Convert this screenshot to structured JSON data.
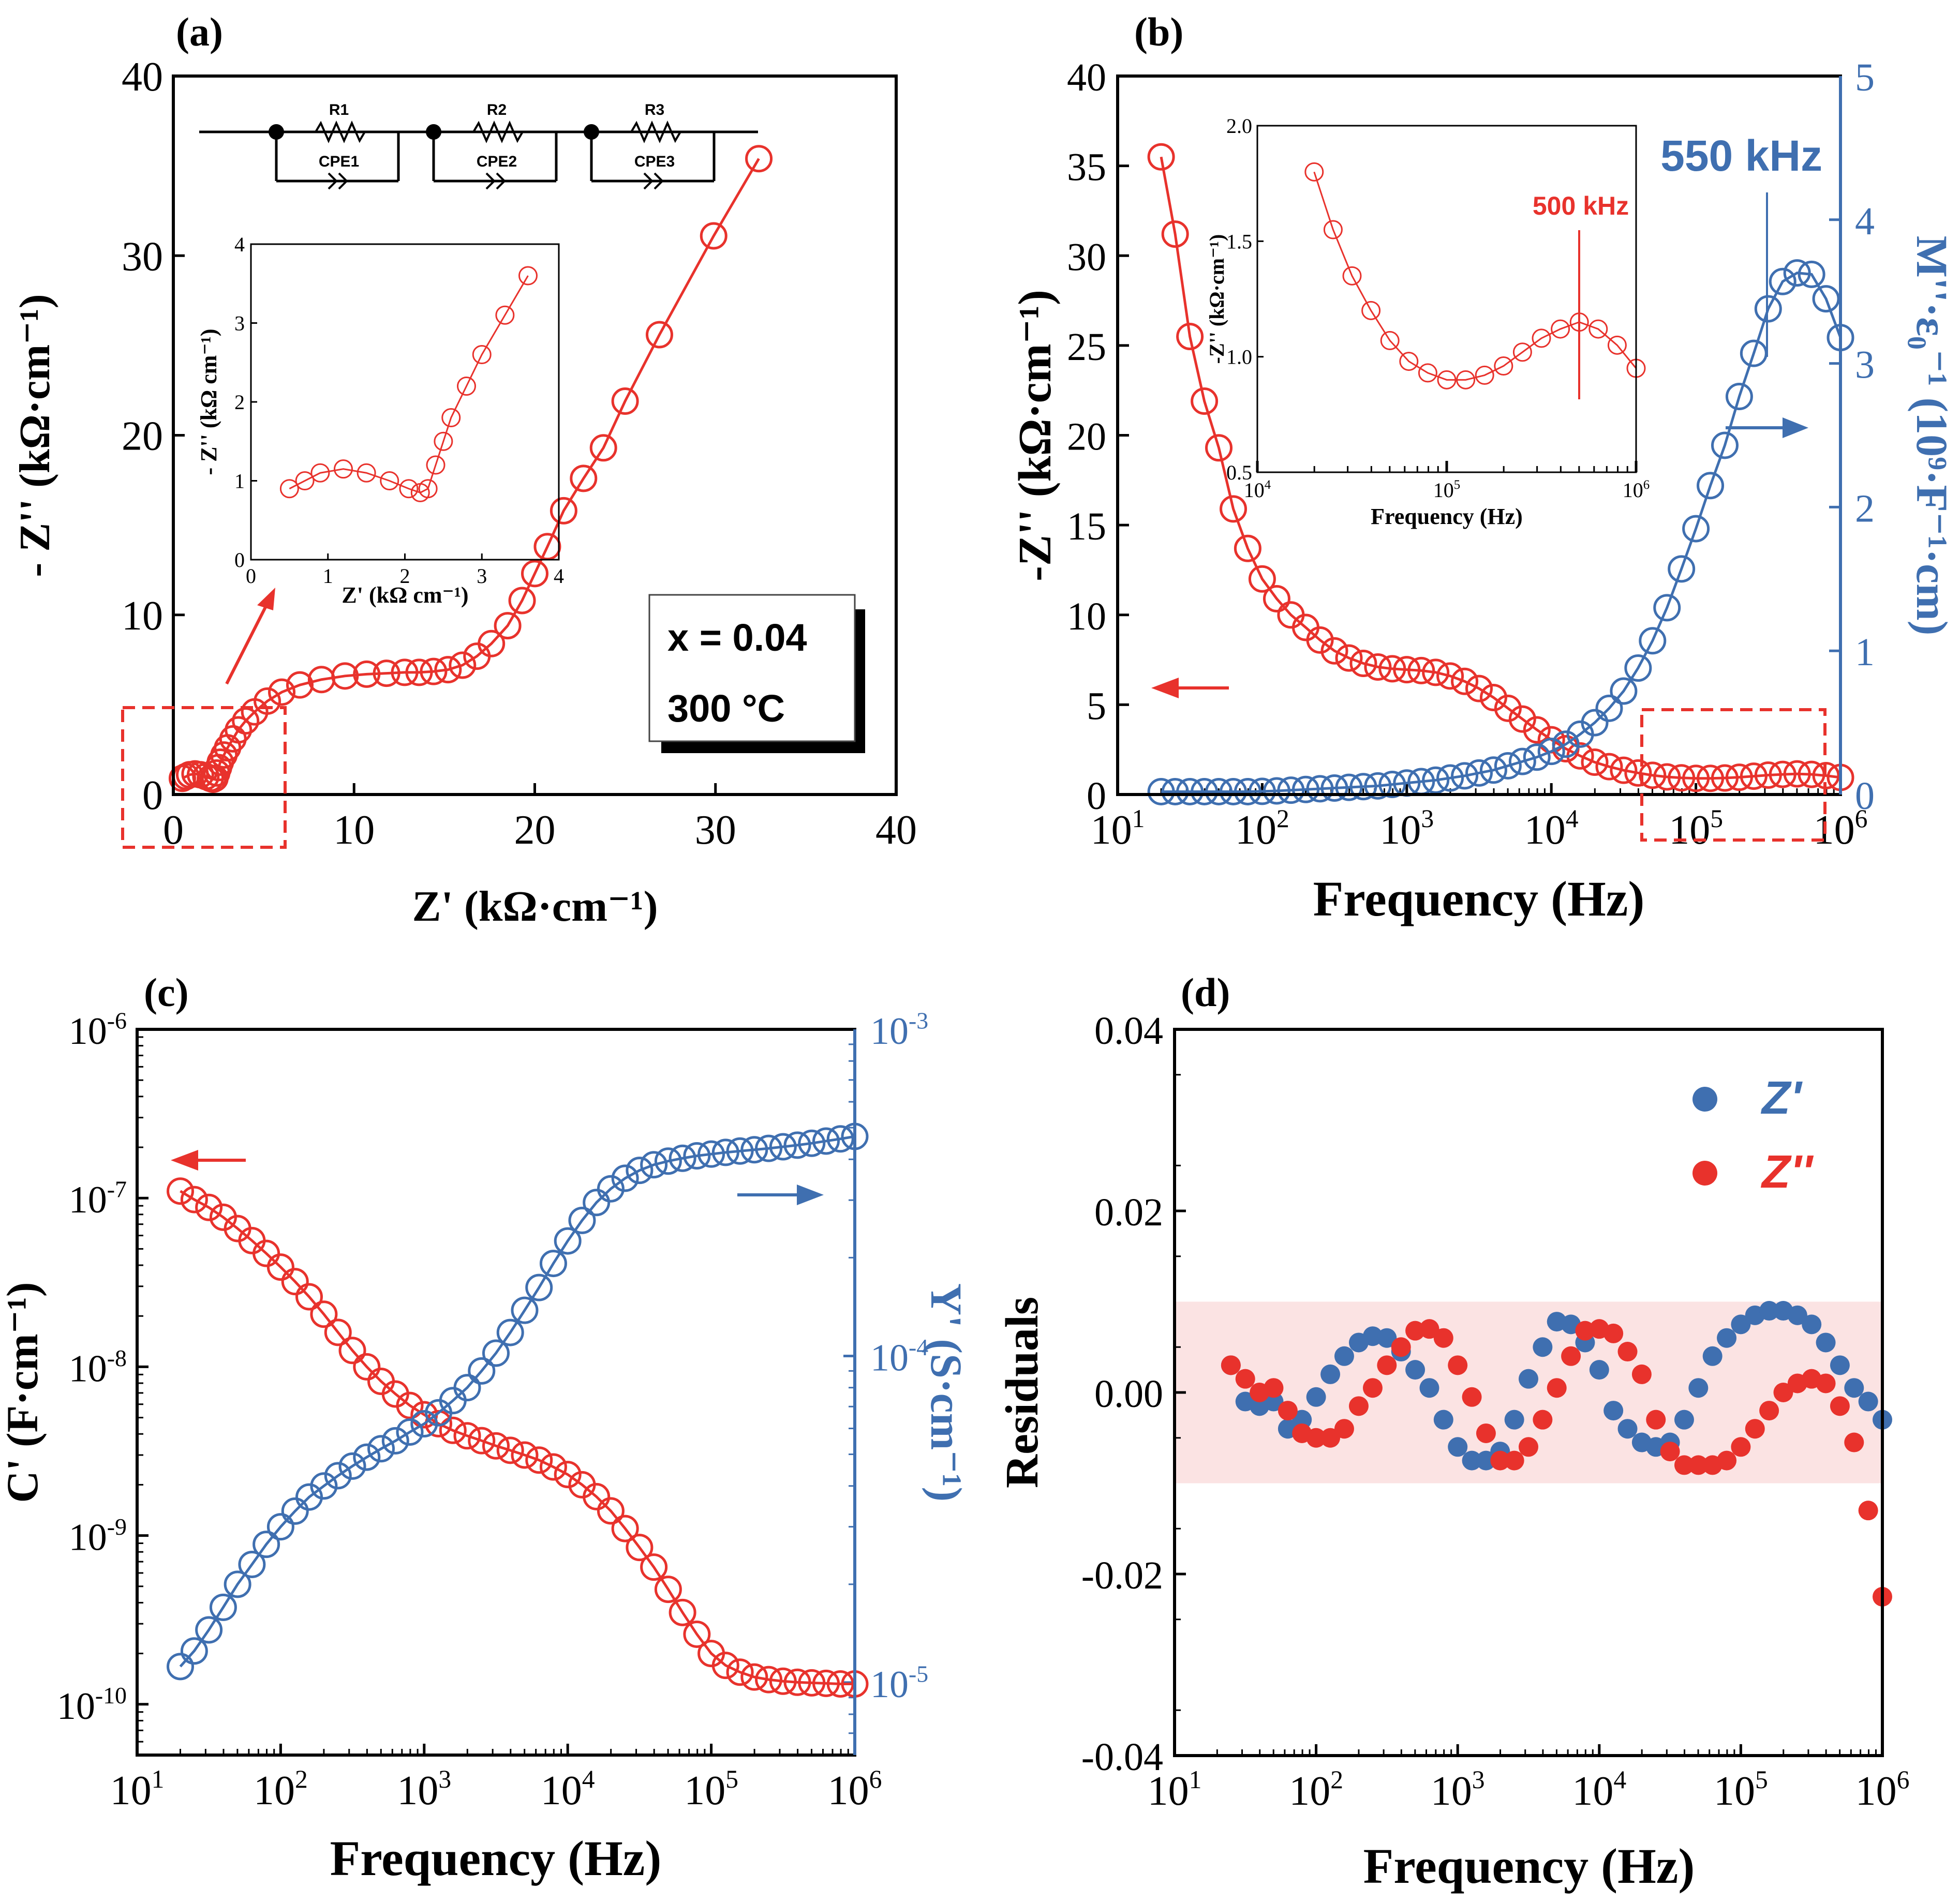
{
  "figure": {
    "colors": {
      "red": "#e8322c",
      "blue": "#3f6fb0",
      "blue_dark": "#2f5fa6",
      "black": "#000000",
      "band": "#fbe3e3"
    }
  },
  "chart_data": [
    {
      "panel": "(a)",
      "type": "scatter",
      "title": "",
      "xlabel": "Z' (kΩ·cm⁻¹)",
      "ylabel": "- Z'' (kΩ·cm⁻¹)",
      "xlim": [
        0,
        40
      ],
      "ylim": [
        0,
        40
      ],
      "xticks": [
        0,
        10,
        20,
        30,
        40
      ],
      "yticks": [
        0,
        10,
        20,
        30,
        40
      ],
      "series": [
        {
          "name": "Z'' vs Z'",
          "color": "red",
          "marker": "open-circle",
          "x": [
            0.5,
            0.7,
            0.9,
            1.2,
            1.5,
            1.8,
            2.05,
            2.2,
            2.3,
            2.4,
            2.5,
            2.6,
            2.8,
            3.0,
            3.3,
            3.6,
            4.0,
            4.5,
            5.2,
            6.0,
            7.0,
            8.2,
            9.5,
            10.7,
            11.8,
            12.8,
            13.6,
            14.4,
            15.2,
            16.0,
            16.8,
            17.6,
            18.5,
            19.3,
            20.0,
            20.7,
            21.6,
            22.7,
            23.8,
            25.0,
            26.9,
            29.9,
            32.4
          ],
          "y": [
            0.9,
            1.0,
            1.1,
            1.15,
            1.1,
            1.0,
            0.9,
            0.85,
            0.9,
            1.2,
            1.5,
            1.8,
            2.2,
            2.6,
            3.1,
            3.6,
            4.1,
            4.6,
            5.2,
            5.7,
            6.1,
            6.4,
            6.6,
            6.7,
            6.75,
            6.8,
            6.8,
            6.85,
            6.95,
            7.2,
            7.7,
            8.4,
            9.4,
            10.8,
            12.3,
            13.8,
            15.8,
            17.6,
            19.3,
            21.9,
            25.6,
            31.1,
            35.4
          ]
        }
      ],
      "inset": {
        "xlabel": "Z' (kΩ cm⁻¹)",
        "ylabel": "- Z'' (kΩ cm⁻¹)",
        "xlim": [
          0,
          4
        ],
        "ylim": [
          0,
          4
        ],
        "xticks": [
          0,
          1,
          2,
          3,
          4
        ],
        "yticks": [
          0,
          1,
          2,
          3,
          4
        ]
      },
      "circuit_labels": [
        "R1",
        "R2",
        "R3",
        "CPE1",
        "CPE2",
        "CPE3"
      ],
      "annotation_lines": [
        "x = 0.04",
        "300 °C"
      ]
    },
    {
      "panel": "(b)",
      "type": "line",
      "title": "",
      "xlabel": "Frequency (Hz)",
      "ylabel": "-Z'' (kΩ·cm⁻¹)",
      "y2label": "M''·ε₀⁻¹ (10⁹·F⁻¹·cm)",
      "xscale": "log",
      "xlim": [
        10,
        1000000
      ],
      "ylim": [
        0,
        40
      ],
      "y2lim": [
        0,
        5
      ],
      "yticks": [
        0,
        5,
        10,
        15,
        20,
        25,
        30,
        35,
        40
      ],
      "y2ticks": [
        0,
        1,
        2,
        3,
        4,
        5
      ],
      "series": [
        {
          "name": "-Z''",
          "axis": "left",
          "color": "red",
          "marker": "open-circle",
          "x": [
            20,
            25,
            31.6,
            39.8,
            50.1,
            63.1,
            79.4,
            100,
            126,
            158,
            200,
            251,
            316,
            398,
            501,
            631,
            794,
            1000,
            1259,
            1585,
            1995,
            2512,
            3162,
            3981,
            5012,
            6310,
            7943,
            10000,
            12589,
            15849,
            19953,
            25119,
            31623,
            39811,
            50119,
            63096,
            79433,
            100000,
            125893,
            158489,
            199526,
            251189,
            316228,
            398107,
            501187,
            630957,
            794328,
            1000000
          ],
          "y": [
            35.5,
            31.2,
            25.5,
            21.9,
            19.3,
            15.9,
            13.7,
            12.0,
            10.9,
            10.0,
            9.3,
            8.6,
            8.0,
            7.6,
            7.3,
            7.1,
            7.0,
            6.95,
            6.9,
            6.8,
            6.6,
            6.3,
            5.9,
            5.4,
            4.8,
            4.2,
            3.6,
            3.05,
            2.55,
            2.15,
            1.8,
            1.55,
            1.35,
            1.2,
            1.07,
            0.98,
            0.93,
            0.9,
            0.9,
            0.92,
            0.96,
            1.02,
            1.08,
            1.12,
            1.15,
            1.12,
            1.05,
            0.95
          ]
        },
        {
          "name": "M''·ε₀⁻¹",
          "axis": "right",
          "color": "blue",
          "marker": "open-circle",
          "x": [
            20,
            25,
            31.6,
            39.8,
            50.1,
            63.1,
            79.4,
            100,
            126,
            158,
            200,
            251,
            316,
            398,
            501,
            631,
            794,
            1000,
            1259,
            1585,
            1995,
            2512,
            3162,
            3981,
            5012,
            6310,
            7943,
            10000,
            12589,
            15849,
            19953,
            25119,
            31623,
            39811,
            50119,
            63096,
            79433,
            100000,
            125893,
            158489,
            199526,
            251189,
            316228,
            398107,
            501187,
            630957,
            794328,
            1000000
          ],
          "y": [
            0.02,
            0.02,
            0.02,
            0.02,
            0.02,
            0.02,
            0.02,
            0.022,
            0.025,
            0.03,
            0.035,
            0.04,
            0.045,
            0.05,
            0.055,
            0.06,
            0.07,
            0.08,
            0.09,
            0.1,
            0.115,
            0.13,
            0.15,
            0.17,
            0.2,
            0.23,
            0.26,
            0.3,
            0.35,
            0.42,
            0.5,
            0.6,
            0.72,
            0.88,
            1.07,
            1.3,
            1.57,
            1.85,
            2.15,
            2.43,
            2.77,
            3.07,
            3.38,
            3.57,
            3.63,
            3.62,
            3.45,
            3.18
          ]
        }
      ],
      "annotations": [
        "550 kHz"
      ],
      "inset": {
        "xlabel": "Frequency (Hz)",
        "ylabel": "-Z'' (kΩ·cm⁻¹)",
        "xscale": "log",
        "xlim": [
          10000,
          1000000
        ],
        "ylim": [
          0.5,
          2.0
        ],
        "yticks": [
          0.5,
          1.0,
          1.5,
          2.0
        ],
        "annotation": "500 kHz"
      }
    },
    {
      "panel": "(c)",
      "type": "line",
      "title": "",
      "xlabel": "Frequency (Hz)",
      "ylabel": "C' (F·cm⁻¹)",
      "y2label": "Y' (S·cm⁻¹)",
      "xscale": "log",
      "yscale": "log",
      "y2scale": "log",
      "xlim": [
        10,
        1000000
      ],
      "ylim": [
        5e-11,
        1e-06
      ],
      "y2lim": [
        6e-06,
        0.001
      ],
      "series": [
        {
          "name": "C'",
          "axis": "left",
          "color": "red",
          "marker": "open-circle",
          "x": [
            20,
            25,
            31.6,
            39.8,
            50.1,
            63.1,
            79.4,
            100,
            126,
            158,
            200,
            251,
            316,
            398,
            501,
            631,
            794,
            1000,
            1259,
            1585,
            1995,
            2512,
            3162,
            3981,
            5012,
            6310,
            7943,
            10000,
            12589,
            15849,
            19953,
            25119,
            31623,
            39811,
            50119,
            63096,
            79433,
            100000,
            125893,
            158489,
            199526,
            251189,
            316228,
            398107,
            501187,
            630957,
            794328,
            1000000
          ],
          "y": [
            1.1e-07,
            9.8e-08,
            8.8e-08,
            7.7e-08,
            6.6e-08,
            5.6e-08,
            4.7e-08,
            3.9e-08,
            3.2e-08,
            2.6e-08,
            2.05e-08,
            1.6e-08,
            1.25e-08,
            1e-08,
            8.2e-09,
            6.9e-09,
            5.9e-09,
            5.2e-09,
            4.6e-09,
            4.2e-09,
            3.9e-09,
            3.65e-09,
            3.4e-09,
            3.2e-09,
            3e-09,
            2.8e-09,
            2.55e-09,
            2.3e-09,
            2e-09,
            1.7e-09,
            1.4e-09,
            1.1e-09,
            8.5e-10,
            6.5e-10,
            4.8e-10,
            3.5e-10,
            2.6e-10,
            2e-10,
            1.7e-10,
            1.55e-10,
            1.45e-10,
            1.4e-10,
            1.37e-10,
            1.35e-10,
            1.34e-10,
            1.33e-10,
            1.32e-10,
            1.32e-10
          ]
        },
        {
          "name": "Y'",
          "axis": "right",
          "color": "blue",
          "marker": "open-circle",
          "x": [
            20,
            25,
            31.6,
            39.8,
            50.1,
            63.1,
            79.4,
            100,
            126,
            158,
            200,
            251,
            316,
            398,
            501,
            631,
            794,
            1000,
            1259,
            1585,
            1995,
            2512,
            3162,
            3981,
            5012,
            6310,
            7943,
            10000,
            12589,
            15849,
            19953,
            25119,
            31623,
            39811,
            50119,
            63096,
            79433,
            100000,
            125893,
            158489,
            199526,
            251189,
            316228,
            398107,
            501187,
            630957,
            794328,
            1000000
          ],
          "y": [
            1.12e-05,
            1.25e-05,
            1.45e-05,
            1.7e-05,
            2e-05,
            2.3e-05,
            2.65e-05,
            3e-05,
            3.35e-05,
            3.7e-05,
            4e-05,
            4.3e-05,
            4.6e-05,
            4.9e-05,
            5.2e-05,
            5.5e-05,
            5.85e-05,
            6.2e-05,
            6.7e-05,
            7.3e-05,
            8e-05,
            9e-05,
            0.000102,
            0.000118,
            0.000138,
            0.000162,
            0.000192,
            0.000225,
            0.00026,
            0.000295,
            0.000325,
            0.00035,
            0.00037,
            0.000385,
            0.000395,
            0.000403,
            0.00041,
            0.000415,
            0.00042,
            0.000424,
            0.000428,
            0.000432,
            0.000437,
            0.000442,
            0.000448,
            0.000455,
            0.000462,
            0.00047
          ]
        }
      ]
    },
    {
      "panel": "(d)",
      "type": "scatter",
      "title": "",
      "xlabel": "Frequency (Hz)",
      "ylabel": "Residuals",
      "xscale": "log",
      "xlim": [
        10,
        1000000
      ],
      "ylim": [
        -0.04,
        0.04
      ],
      "yticks": [
        -0.04,
        -0.02,
        0.0,
        0.02,
        0.04
      ],
      "band": [
        -0.01,
        0.01
      ],
      "legend": {
        "placement": "top-right",
        "entries": [
          "Z'",
          "Z''"
        ]
      },
      "series": [
        {
          "name": "Z'",
          "color": "blue",
          "marker": "filled-circle",
          "x": [
            25,
            31.6,
            39.8,
            50.1,
            63.1,
            79.4,
            100,
            126,
            158,
            200,
            251,
            316,
            398,
            501,
            631,
            794,
            1000,
            1259,
            1585,
            1995,
            2512,
            3162,
            3981,
            5012,
            6310,
            7943,
            10000,
            12589,
            15849,
            19953,
            25119,
            31623,
            39811,
            50119,
            63096,
            79433,
            100000,
            125893,
            158489,
            199526,
            251189,
            316228,
            398107,
            501187,
            630957,
            794328,
            1000000
          ],
          "y": [
            0.003,
            -0.001,
            -0.0015,
            -0.001,
            -0.004,
            -0.003,
            -0.0005,
            0.002,
            0.004,
            0.0055,
            0.0062,
            0.006,
            0.0045,
            0.0025,
            0.0005,
            -0.003,
            -0.006,
            -0.0075,
            -0.0075,
            -0.0065,
            -0.003,
            0.0015,
            0.005,
            0.0078,
            0.0075,
            0.0055,
            0.0025,
            -0.002,
            -0.004,
            -0.0055,
            -0.006,
            -0.0055,
            -0.003,
            0.0005,
            0.004,
            0.006,
            0.0075,
            0.0085,
            0.009,
            0.009,
            0.0085,
            0.0075,
            0.0055,
            0.003,
            0.0005,
            -0.001,
            -0.003
          ]
        },
        {
          "name": "Z''",
          "color": "red",
          "marker": "filled-circle",
          "x": [
            25,
            31.6,
            39.8,
            50.1,
            63.1,
            79.4,
            100,
            126,
            158,
            200,
            251,
            316,
            398,
            501,
            631,
            794,
            1000,
            1259,
            1585,
            1995,
            2512,
            3162,
            3981,
            5012,
            6310,
            7943,
            10000,
            12589,
            15849,
            19953,
            25119,
            31623,
            39811,
            50119,
            63096,
            79433,
            100000,
            125893,
            158489,
            199526,
            251189,
            316228,
            398107,
            501187,
            630957,
            794328,
            1000000
          ],
          "y": [
            0.003,
            0.0015,
            0.0,
            0.0005,
            -0.002,
            -0.0045,
            -0.005,
            -0.005,
            -0.004,
            -0.0015,
            0.0005,
            0.003,
            0.005,
            0.0068,
            0.007,
            0.006,
            0.003,
            -0.0005,
            -0.0045,
            -0.0075,
            -0.0075,
            -0.006,
            -0.003,
            0.0005,
            0.004,
            0.0068,
            0.007,
            0.0065,
            0.0045,
            0.002,
            -0.003,
            -0.0065,
            -0.008,
            -0.008,
            -0.008,
            -0.0075,
            -0.006,
            -0.004,
            -0.002,
            0.0,
            0.001,
            0.0015,
            0.001,
            -0.0015,
            -0.0055,
            -0.013,
            -0.0225
          ]
        }
      ]
    }
  ]
}
